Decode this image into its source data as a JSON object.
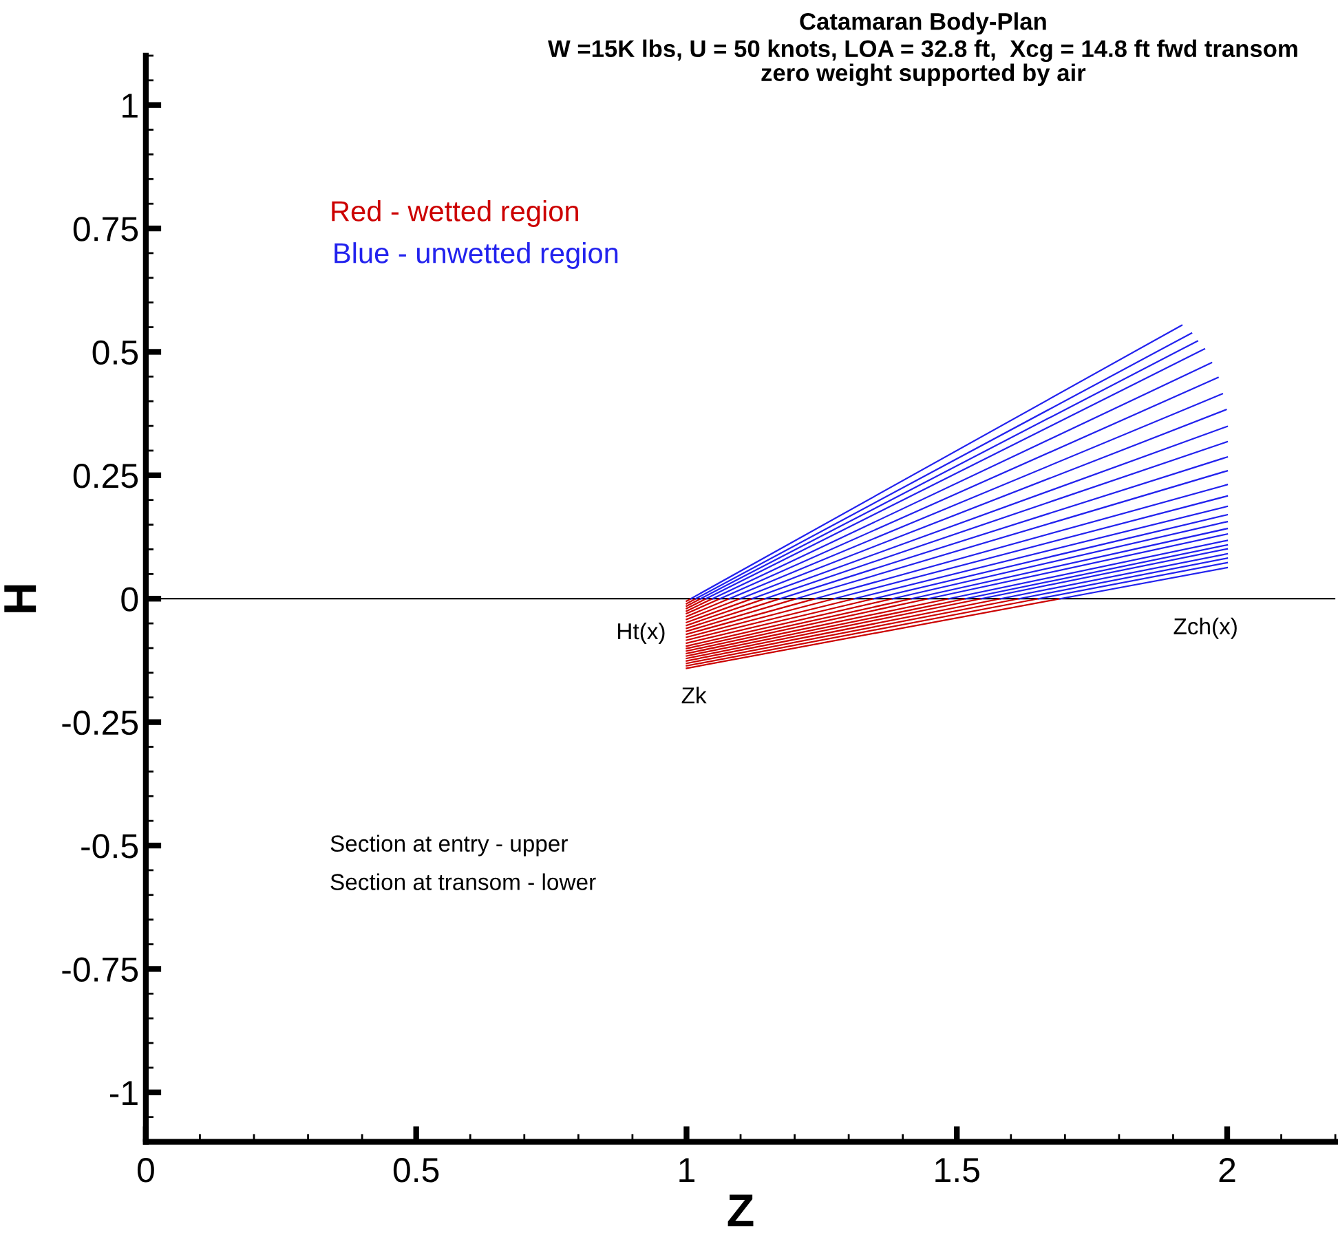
{
  "chart_data": {
    "type": "line",
    "title": "Catamaran Body-Plan",
    "subtitle": "W =15K lbs, U = 50 knots, LOA = 32.8 ft,  Xcg = 14.8 ft fwd transom\nzero weight supported by air",
    "xlabel": "Z",
    "ylabel": "H",
    "xlim": [
      0,
      2.2
    ],
    "ylim": [
      -1.1,
      1.1
    ],
    "xticks": [
      0,
      0.5,
      1,
      1.5,
      2
    ],
    "yticks": [
      -1,
      -0.75,
      -0.5,
      -0.25,
      0,
      0.25,
      0.5,
      0.75,
      1
    ],
    "grid": false,
    "legend": false,
    "marker": "none",
    "line_style": "solid",
    "ref_lines": [
      {
        "axis": "y",
        "value": 0,
        "color": "#000000",
        "line_style": "solid"
      }
    ],
    "annotations": [
      "Red - wetted region",
      "Blue - unwetted region",
      "Section at entry - upper",
      "Section at transom - lower",
      "Ht(x)",
      "Zk",
      "Zch(x)"
    ],
    "series": [
      {
        "color": "#cc0000",
        "x": [
          1,
          1.691
        ],
        "values": [
          -0.141,
          0
        ]
      },
      {
        "color": "#2222ee",
        "x": [
          1.691,
          2
        ],
        "values": [
          0,
          0.063
        ]
      },
      {
        "color": "#cc0000",
        "x": [
          1,
          1.651
        ],
        "values": [
          -0.136,
          0
        ]
      },
      {
        "color": "#2222ee",
        "x": [
          1.651,
          2
        ],
        "values": [
          0,
          0.073
        ]
      },
      {
        "color": "#cc0000",
        "x": [
          1,
          1.615
        ],
        "values": [
          -0.131,
          0
        ]
      },
      {
        "color": "#2222ee",
        "x": [
          1.615,
          2
        ],
        "values": [
          0,
          0.082
        ]
      },
      {
        "color": "#cc0000",
        "x": [
          1,
          1.581
        ],
        "values": [
          -0.126,
          0
        ]
      },
      {
        "color": "#2222ee",
        "x": [
          1.581,
          2
        ],
        "values": [
          0,
          0.091
        ]
      },
      {
        "color": "#cc0000",
        "x": [
          1,
          1.545
        ],
        "values": [
          -0.121,
          0
        ]
      },
      {
        "color": "#2222ee",
        "x": [
          1.545,
          2
        ],
        "values": [
          0,
          0.101
        ]
      },
      {
        "color": "#cc0000",
        "x": [
          1,
          1.516
        ],
        "values": [
          -0.116,
          0
        ]
      },
      {
        "color": "#2222ee",
        "x": [
          1.516,
          2
        ],
        "values": [
          0,
          0.109
        ]
      },
      {
        "color": "#cc0000",
        "x": [
          1,
          1.485
        ],
        "values": [
          -0.111,
          0
        ]
      },
      {
        "color": "#2222ee",
        "x": [
          1.485,
          2
        ],
        "values": [
          0,
          0.118
        ]
      },
      {
        "color": "#cc0000",
        "x": [
          1,
          1.447
        ],
        "values": [
          -0.106,
          0
        ]
      },
      {
        "color": "#2222ee",
        "x": [
          1.447,
          2
        ],
        "values": [
          0,
          0.131
        ]
      },
      {
        "color": "#cc0000",
        "x": [
          1,
          1.416
        ],
        "values": [
          -0.101,
          0
        ]
      },
      {
        "color": "#2222ee",
        "x": [
          1.416,
          2
        ],
        "values": [
          0,
          0.142
        ]
      },
      {
        "color": "#cc0000",
        "x": [
          1,
          1.381
        ],
        "values": [
          -0.096,
          0
        ]
      },
      {
        "color": "#2222ee",
        "x": [
          1.381,
          2
        ],
        "values": [
          0,
          0.156
        ]
      },
      {
        "color": "#cc0000",
        "x": [
          1,
          1.346
        ],
        "values": [
          -0.09,
          0
        ]
      },
      {
        "color": "#2222ee",
        "x": [
          1.346,
          2
        ],
        "values": [
          0,
          0.17
        ]
      },
      {
        "color": "#cc0000",
        "x": [
          1,
          1.31
        ],
        "values": [
          -0.084,
          0
        ]
      },
      {
        "color": "#2222ee",
        "x": [
          1.31,
          2
        ],
        "values": [
          0,
          0.187
        ]
      },
      {
        "color": "#cc0000",
        "x": [
          1,
          1.273
        ],
        "values": [
          -0.078,
          0
        ]
      },
      {
        "color": "#2222ee",
        "x": [
          1.273,
          2
        ],
        "values": [
          0,
          0.208
        ]
      },
      {
        "color": "#cc0000",
        "x": [
          1,
          1.238
        ],
        "values": [
          -0.072,
          0
        ]
      },
      {
        "color": "#2222ee",
        "x": [
          1.238,
          2
        ],
        "values": [
          0,
          0.231
        ]
      },
      {
        "color": "#cc0000",
        "x": [
          1,
          1.203
        ],
        "values": [
          -0.066,
          0
        ]
      },
      {
        "color": "#2222ee",
        "x": [
          1.203,
          2
        ],
        "values": [
          0,
          0.259
        ]
      },
      {
        "color": "#cc0000",
        "x": [
          1,
          1.173
        ],
        "values": [
          -0.06,
          0
        ]
      },
      {
        "color": "#2222ee",
        "x": [
          1.173,
          2
        ],
        "values": [
          0,
          0.287
        ]
      },
      {
        "color": "#cc0000",
        "x": [
          1,
          1.145
        ],
        "values": [
          -0.054,
          0
        ]
      },
      {
        "color": "#2222ee",
        "x": [
          1.145,
          2
        ],
        "values": [
          0,
          0.318
        ]
      },
      {
        "color": "#cc0000",
        "x": [
          1,
          1.121
        ],
        "values": [
          -0.048,
          0
        ]
      },
      {
        "color": "#2222ee",
        "x": [
          1.121,
          2
        ],
        "values": [
          0,
          0.349
        ]
      },
      {
        "color": "#cc0000",
        "x": [
          1,
          1.099
        ],
        "values": [
          -0.042,
          0
        ]
      },
      {
        "color": "#2222ee",
        "x": [
          1.099,
          1.998
        ],
        "values": [
          0,
          0.383
        ]
      },
      {
        "color": "#cc0000",
        "x": [
          1,
          1.079
        ],
        "values": [
          -0.036,
          0
        ]
      },
      {
        "color": "#2222ee",
        "x": [
          1.079,
          1.991
        ],
        "values": [
          0,
          0.415
        ]
      },
      {
        "color": "#cc0000",
        "x": [
          1,
          1.062
        ],
        "values": [
          -0.03,
          0
        ]
      },
      {
        "color": "#2222ee",
        "x": [
          1.062,
          1.983
        ],
        "values": [
          0,
          0.448
        ]
      },
      {
        "color": "#cc0000",
        "x": [
          1,
          1.048
        ],
        "values": [
          -0.025,
          0
        ]
      },
      {
        "color": "#2222ee",
        "x": [
          1.048,
          1.971
        ],
        "values": [
          0,
          0.478
        ]
      },
      {
        "color": "#cc0000",
        "x": [
          1,
          1.036
        ],
        "values": [
          -0.02,
          0
        ]
      },
      {
        "color": "#2222ee",
        "x": [
          1.036,
          1.958
        ],
        "values": [
          0,
          0.506
        ]
      },
      {
        "color": "#cc0000",
        "x": [
          1,
          1.026
        ],
        "values": [
          -0.015,
          0
        ]
      },
      {
        "color": "#2222ee",
        "x": [
          1.026,
          1.945
        ],
        "values": [
          0,
          0.522
        ]
      },
      {
        "color": "#cc0000",
        "x": [
          1,
          1.017
        ],
        "values": [
          -0.01,
          0
        ]
      },
      {
        "color": "#2222ee",
        "x": [
          1.017,
          1.934
        ],
        "values": [
          0,
          0.538
        ]
      },
      {
        "color": "#cc0000",
        "x": [
          1,
          1.008
        ],
        "values": [
          -0.005,
          0
        ]
      },
      {
        "color": "#2222ee",
        "x": [
          1.008,
          1.916
        ],
        "values": [
          0,
          0.554
        ]
      }
    ]
  }
}
